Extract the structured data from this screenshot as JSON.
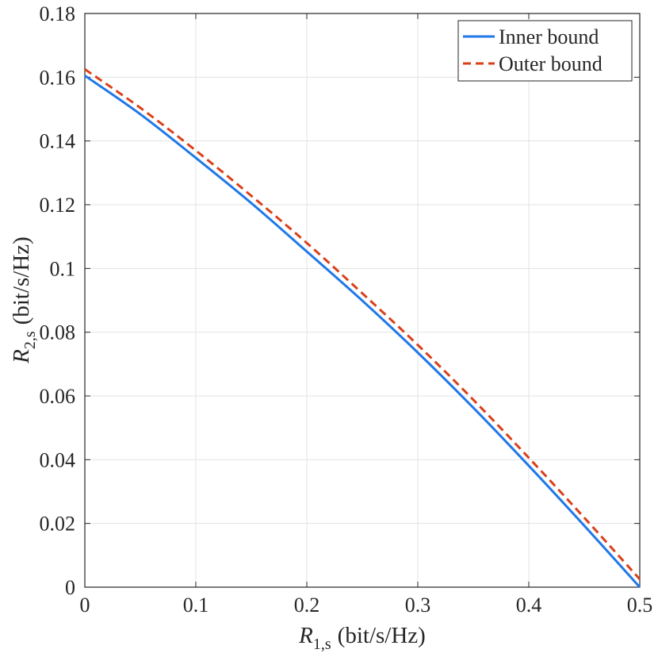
{
  "chart_data": {
    "type": "line",
    "title": "",
    "xlabel": {
      "symbol": "R",
      "subscript": "1,s",
      "unit": "(bit/s/Hz)"
    },
    "ylabel": {
      "symbol": "R",
      "subscript": "2,s",
      "unit": "(bit/s/Hz)"
    },
    "xlim": [
      0,
      0.5
    ],
    "ylim": [
      0,
      0.18
    ],
    "xticks": [
      0,
      0.1,
      0.2,
      0.3,
      0.4,
      0.5
    ],
    "yticks": [
      0,
      0.02,
      0.04,
      0.06,
      0.08,
      0.1,
      0.12,
      0.14,
      0.16,
      0.18
    ],
    "xtick_labels": [
      "0",
      "0.1",
      "0.2",
      "0.3",
      "0.4",
      "0.5"
    ],
    "ytick_labels": [
      "0",
      "0.02",
      "0.04",
      "0.06",
      "0.08",
      "0.1",
      "0.12",
      "0.14",
      "0.16",
      "0.18"
    ],
    "grid": true,
    "legend_position": "top-right",
    "series": [
      {
        "name": "Inner bound",
        "color": "#1f78e8",
        "style": "solid",
        "x": [
          0,
          0.05,
          0.1,
          0.15,
          0.2,
          0.25,
          0.3,
          0.35,
          0.4,
          0.45,
          0.5
        ],
        "y": [
          0.1605,
          0.1484,
          0.1347,
          0.1205,
          0.1053,
          0.0899,
          0.0736,
          0.0563,
          0.0381,
          0.0193,
          0.0
        ]
      },
      {
        "name": "Outer bound",
        "color": "#d9401a",
        "style": "dashed",
        "x": [
          0,
          0.05,
          0.1,
          0.15,
          0.2,
          0.25,
          0.3,
          0.35,
          0.4,
          0.45,
          0.5
        ],
        "y": [
          0.1625,
          0.1504,
          0.137,
          0.1228,
          0.108,
          0.0922,
          0.076,
          0.0588,
          0.0406,
          0.0218,
          0.0025
        ]
      }
    ]
  }
}
